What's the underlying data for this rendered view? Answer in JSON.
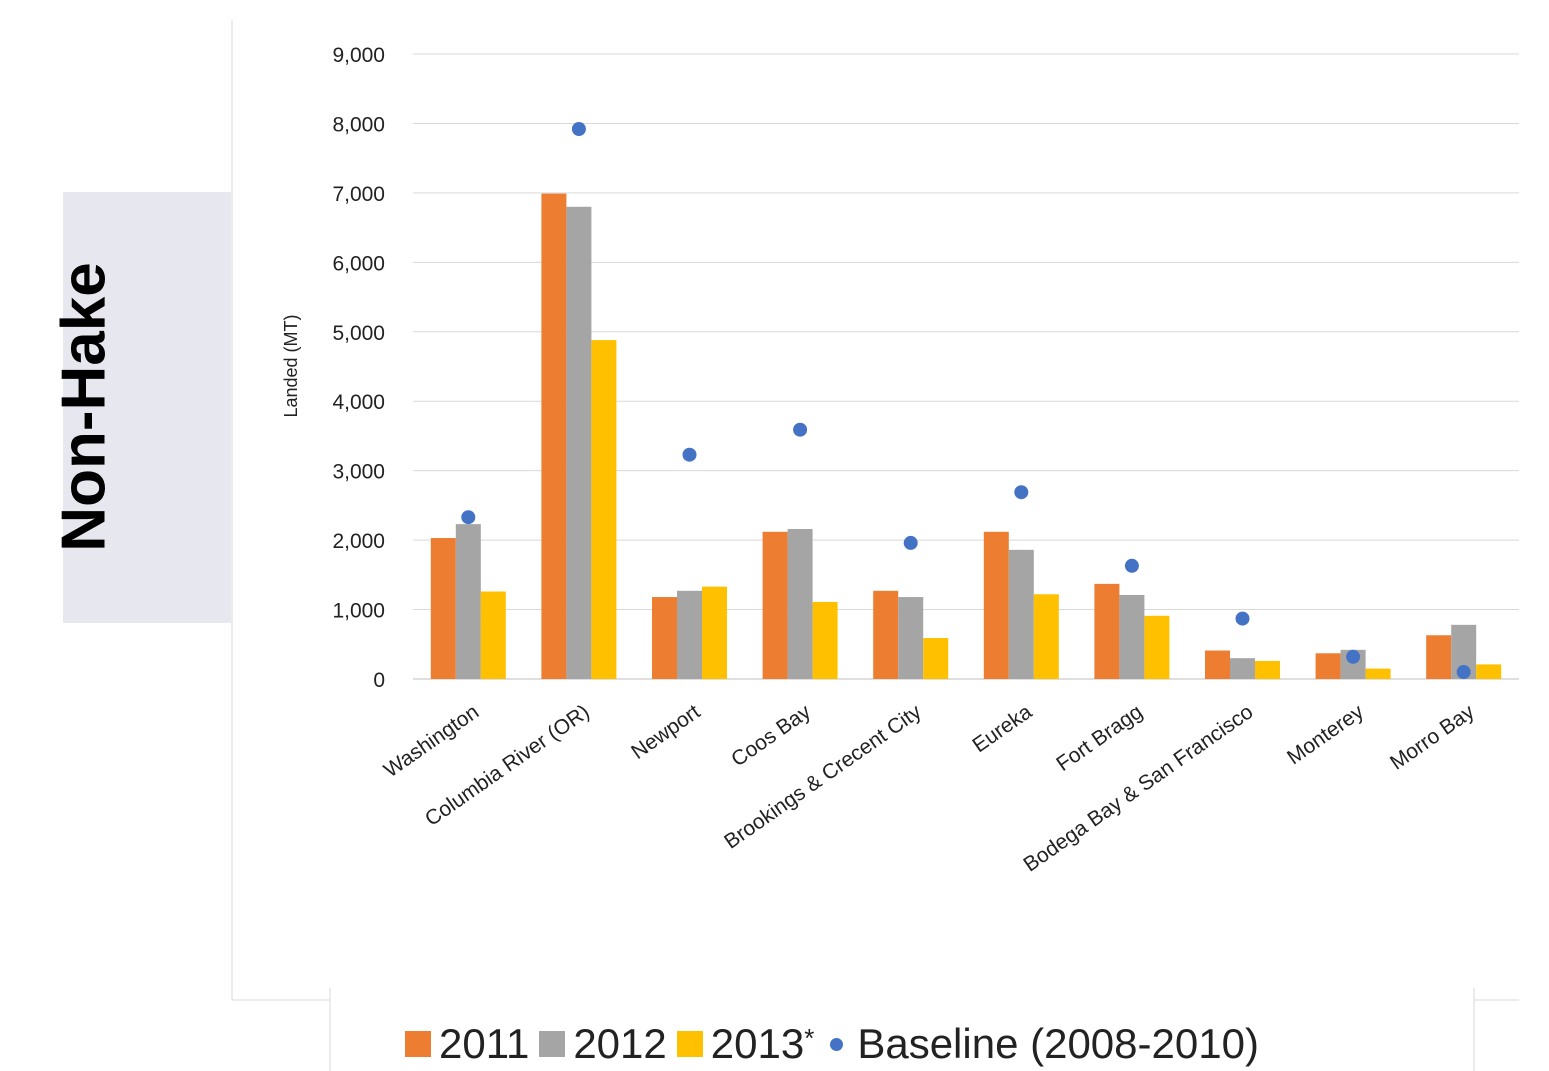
{
  "side_label": "Non-Hake",
  "colors": {
    "s2011": "#ED7D31",
    "s2012": "#A5A5A5",
    "s2013": "#FFC000",
    "baseline": "#4472C4",
    "grid": "#d9d9d9",
    "side_box": "#e6e7ef"
  },
  "legend": {
    "items": [
      {
        "label": "2011",
        "marker": "square",
        "color": "#ED7D31"
      },
      {
        "label": "2012",
        "marker": "square",
        "color": "#A5A5A5"
      },
      {
        "label": "2013",
        "suffix": "*",
        "marker": "square",
        "color": "#FFC000"
      },
      {
        "label": "Baseline (2008-2010)",
        "marker": "dot",
        "color": "#4472C4"
      }
    ]
  },
  "chart_data": {
    "type": "bar",
    "ylabel": "Landed (MT)",
    "ylim": [
      0,
      9000
    ],
    "yticks": [
      "0",
      "1,000",
      "2,000",
      "3,000",
      "4,000",
      "5,000",
      "6,000",
      "7,000",
      "8,000",
      "9,000"
    ],
    "ytick_values": [
      0,
      1000,
      2000,
      3000,
      4000,
      5000,
      6000,
      7000,
      8000,
      9000
    ],
    "grid": true,
    "categories": [
      "Washington",
      "Columbia River (OR)",
      "Newport",
      "Coos Bay",
      "Brookings & Crecent City",
      "Eureka",
      "Fort Bragg",
      "Bodega Bay & San Francisco",
      "Monterey",
      "Morro Bay"
    ],
    "series": [
      {
        "name": "2011",
        "type": "bar",
        "color": "#ED7D31",
        "values": [
          2030,
          6990,
          1180,
          2120,
          1270,
          2120,
          1370,
          410,
          370,
          630
        ]
      },
      {
        "name": "2012",
        "type": "bar",
        "color": "#A5A5A5",
        "values": [
          2230,
          6800,
          1270,
          2160,
          1180,
          1860,
          1210,
          300,
          420,
          780
        ]
      },
      {
        "name": "2013*",
        "type": "bar",
        "color": "#FFC000",
        "values": [
          1260,
          4880,
          1330,
          1110,
          590,
          1220,
          910,
          260,
          150,
          210
        ]
      },
      {
        "name": "Baseline (2008-2010)",
        "type": "scatter",
        "color": "#4472C4",
        "values": [
          2330,
          7920,
          3230,
          3590,
          1960,
          2690,
          1630,
          870,
          320,
          100
        ]
      }
    ],
    "legend_position": "bottom"
  }
}
